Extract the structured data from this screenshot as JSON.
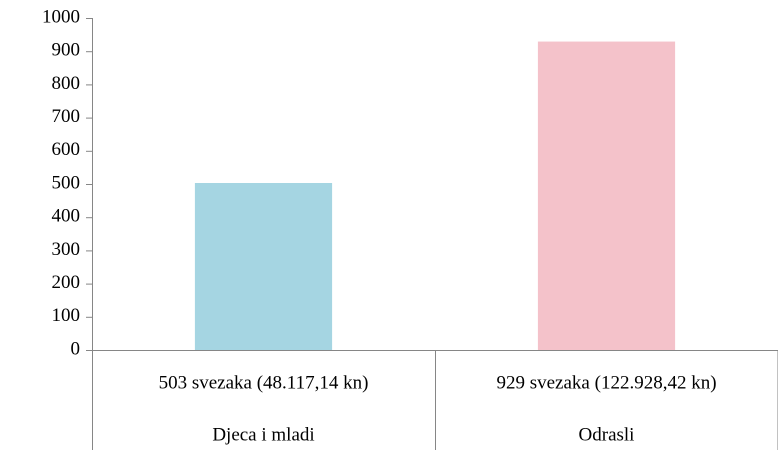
{
  "chart_data": {
    "type": "bar",
    "categories": [
      "503 svezaka (48.117,14 kn)",
      "929 svezaka (122.928,42 kn)"
    ],
    "groups": [
      "Djeca i mladi",
      "Odrasli"
    ],
    "values": [
      503,
      929
    ],
    "colors": [
      "#a5d5e2",
      "#f4c2ca"
    ],
    "ylim": [
      0,
      1000
    ],
    "yticks": [
      0,
      100,
      200,
      300,
      400,
      500,
      600,
      700,
      800,
      900,
      1000
    ],
    "grid": false
  }
}
